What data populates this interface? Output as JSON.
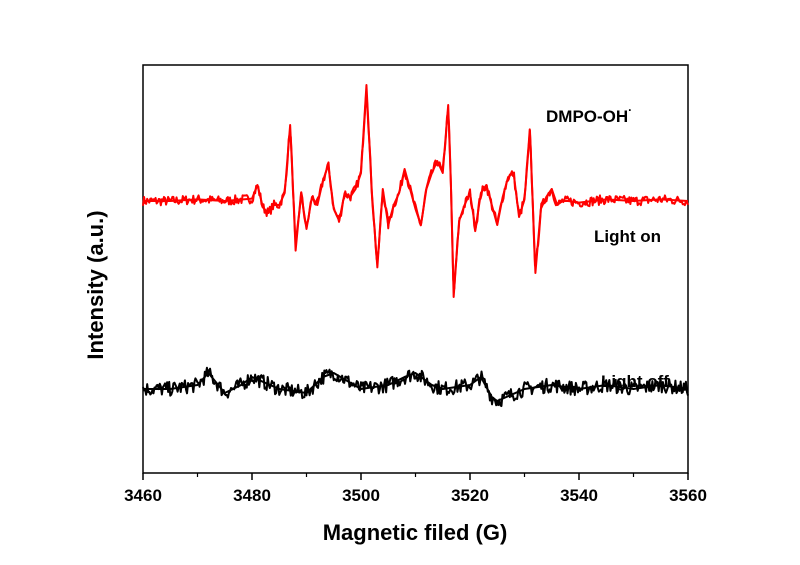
{
  "chart_data": {
    "type": "line",
    "title": "",
    "xlabel": "Magnetic filed (G)",
    "ylabel": "Intensity (a.u.)",
    "xlim": [
      3460,
      3560
    ],
    "ylim": [
      -3.4,
      1.7
    ],
    "x_ticks": [
      "3460",
      "3480",
      "3500",
      "3520",
      "3540",
      "3560"
    ],
    "y_ticks_shown": false,
    "grid": false,
    "legend": "none",
    "annotations": [
      {
        "text": "DMPO-OH",
        "superscript": "·"
      }
    ],
    "series": [
      {
        "name": "Light on",
        "color": "#ff0000",
        "x": [
          3460,
          3465,
          3470,
          3475,
          3480,
          3481,
          3482,
          3483,
          3484,
          3485,
          3486,
          3487,
          3487.5,
          3488,
          3489,
          3490,
          3491,
          3492,
          3493,
          3494,
          3495,
          3496,
          3497,
          3498,
          3499,
          3500,
          3501,
          3502,
          3503,
          3504,
          3505,
          3506,
          3507,
          3508,
          3509,
          3510,
          3511,
          3512,
          3513,
          3514,
          3515,
          3516,
          3516.5,
          3517,
          3518,
          3519,
          3520,
          3521,
          3522,
          3523,
          3524,
          3525,
          3526,
          3527,
          3528,
          3529,
          3530,
          3531,
          3532,
          3533,
          3534,
          3535,
          3536,
          3537,
          3538,
          3540,
          3545,
          3550,
          3555,
          3560
        ],
        "values": [
          0.0,
          0.0,
          0.02,
          0.0,
          0.03,
          0.2,
          -0.08,
          -0.15,
          -0.05,
          -0.05,
          0.1,
          0.95,
          0.2,
          -0.62,
          0.1,
          -0.35,
          0.05,
          -0.05,
          0.25,
          0.45,
          -0.1,
          -0.25,
          0.1,
          0.05,
          0.15,
          0.35,
          1.45,
          0.1,
          -0.83,
          0.15,
          -0.3,
          -0.05,
          0.1,
          0.4,
          0.15,
          -0.1,
          -0.3,
          0.15,
          0.35,
          0.5,
          0.35,
          1.2,
          0.2,
          -1.2,
          -0.25,
          -0.05,
          0.1,
          -0.35,
          0.1,
          0.2,
          -0.05,
          -0.3,
          0.05,
          0.3,
          0.35,
          -0.2,
          0.02,
          0.88,
          -0.9,
          -0.1,
          0.05,
          0.15,
          -0.05,
          0.0,
          0.0,
          -0.02,
          0.02,
          0.0,
          0.02,
          0.0
        ]
      },
      {
        "name": "Light off",
        "color": "#000000",
        "x": [
          3460,
          3465,
          3470,
          3472,
          3475,
          3478,
          3480,
          3485,
          3490,
          3493,
          3495,
          3500,
          3505,
          3508,
          3510,
          3513,
          3515,
          3520,
          3522,
          3524,
          3525,
          3530,
          3535,
          3540,
          3545,
          3550,
          3555,
          3560
        ],
        "values": [
          -2.35,
          -2.35,
          -2.3,
          -2.15,
          -2.4,
          -2.3,
          -2.2,
          -2.35,
          -2.4,
          -2.2,
          -2.15,
          -2.35,
          -2.3,
          -2.2,
          -2.15,
          -2.3,
          -2.35,
          -2.3,
          -2.2,
          -2.45,
          -2.5,
          -2.35,
          -2.3,
          -2.35,
          -2.3,
          -2.35,
          -2.3,
          -2.35
        ]
      }
    ]
  }
}
